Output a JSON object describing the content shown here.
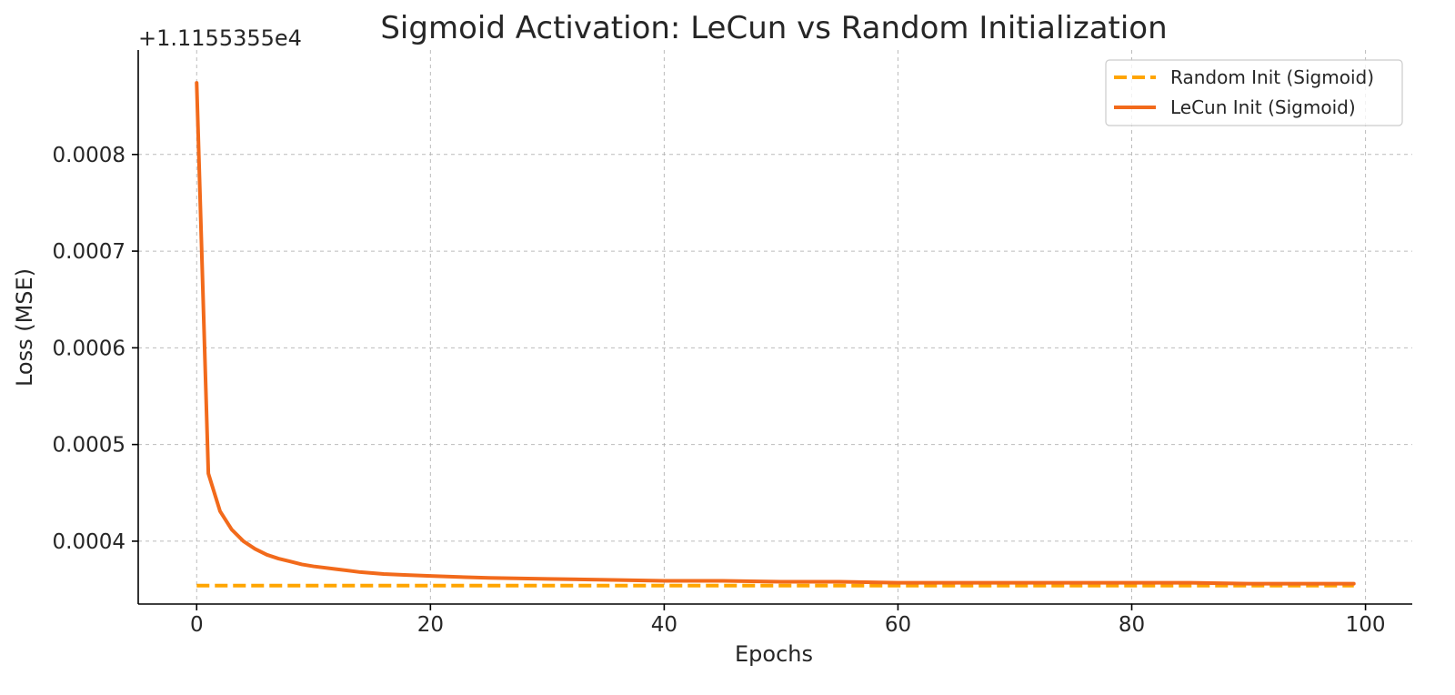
{
  "chart_data": {
    "type": "line",
    "title": "Sigmoid Activation: LeCun vs Random Initialization",
    "xlabel": "Epochs",
    "ylabel": "Loss (MSE)",
    "y_offset_text": "+1.1155355e4",
    "y_offset_value": 11155.355,
    "xlim": [
      -5,
      104
    ],
    "ylim": [
      0.000335,
      0.000908
    ],
    "x_ticks": [
      0,
      20,
      40,
      60,
      80,
      100
    ],
    "x_tick_labels": [
      "0",
      "20",
      "40",
      "60",
      "80",
      "100"
    ],
    "y_ticks": [
      0.0004,
      0.0005,
      0.0006,
      0.0007,
      0.0008
    ],
    "y_tick_labels": [
      "0.0004",
      "0.0005",
      "0.0006",
      "0.0007",
      "0.0008"
    ],
    "grid": true,
    "legend_position": "top-right",
    "series": [
      {
        "name": "Random Init (Sigmoid)",
        "color": "#FFA500",
        "line_style": "dashed",
        "x": [
          0,
          99
        ],
        "y": [
          0.000354,
          0.000354
        ]
      },
      {
        "name": "LeCun Init (Sigmoid)",
        "color": "#F26A1B",
        "line_style": "solid",
        "x": [
          0,
          1,
          2,
          3,
          4,
          5,
          6,
          7,
          8,
          9,
          10,
          12,
          14,
          16,
          18,
          20,
          25,
          30,
          35,
          40,
          45,
          50,
          55,
          60,
          65,
          70,
          75,
          80,
          85,
          90,
          95,
          99
        ],
        "y": [
          0.000874,
          0.00047,
          0.000431,
          0.000412,
          0.0004,
          0.000392,
          0.000386,
          0.000382,
          0.000379,
          0.000376,
          0.000374,
          0.000371,
          0.000368,
          0.000366,
          0.000365,
          0.000364,
          0.000362,
          0.000361,
          0.00036,
          0.000359,
          0.000359,
          0.000358,
          0.000358,
          0.000357,
          0.000357,
          0.000357,
          0.000357,
          0.000357,
          0.000357,
          0.000356,
          0.000356,
          0.000356
        ]
      }
    ]
  }
}
